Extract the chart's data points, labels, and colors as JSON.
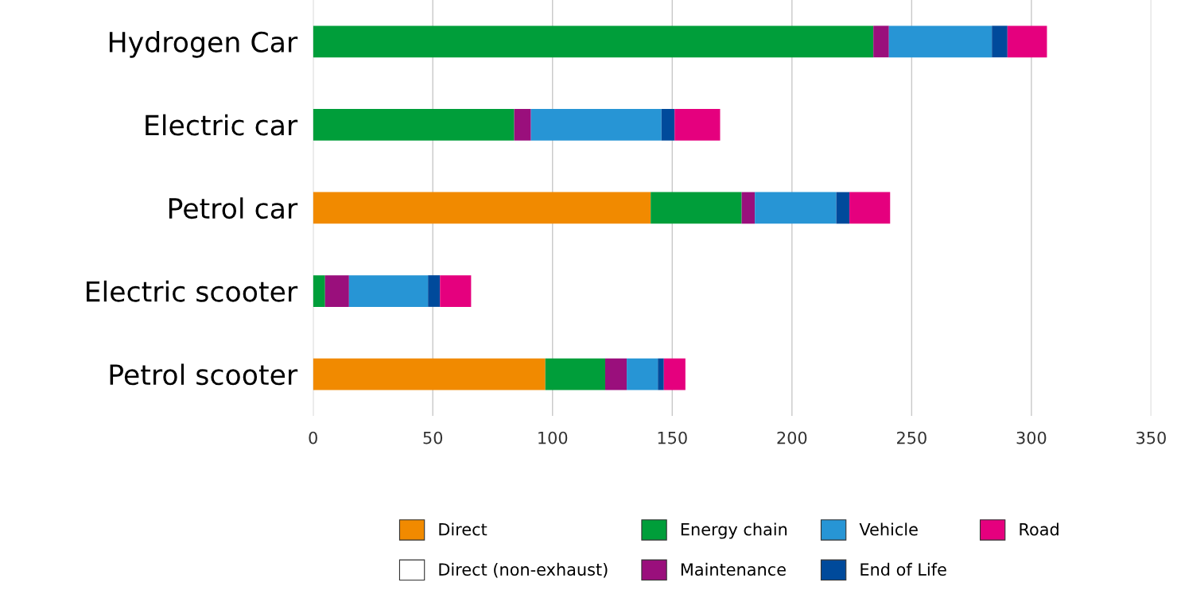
{
  "chart_data": {
    "type": "bar",
    "orientation": "horizontal",
    "stacked": true,
    "categories": [
      "Hydrogen Car",
      "Electric car",
      "Petrol car",
      "Electric scooter",
      "Petrol scooter"
    ],
    "series": [
      {
        "name": "Direct",
        "color": "#f18a00",
        "values": [
          null,
          null,
          141,
          null,
          97
        ]
      },
      {
        "name": "Direct (non-exhaust)",
        "color": "#ffffff",
        "values": [
          null,
          null,
          null,
          null,
          null
        ]
      },
      {
        "name": "Energy chain",
        "color": "#009e3a",
        "values": [
          234,
          84,
          38,
          5,
          25
        ]
      },
      {
        "name": "Maintenance",
        "color": "#9a0f7c",
        "values": [
          6.5,
          7,
          5.5,
          10,
          9
        ]
      },
      {
        "name": "Vehicle",
        "color": "#2795d5",
        "values": [
          43,
          54.5,
          34,
          33,
          13
        ]
      },
      {
        "name": "End of Life",
        "color": "#004a9b",
        "values": [
          6.5,
          5.5,
          5.5,
          5,
          2.5
        ]
      },
      {
        "name": "Road",
        "color": "#e5007e",
        "values": [
          16.5,
          19,
          17,
          13,
          9
        ]
      }
    ],
    "xlim": [
      0,
      350
    ],
    "xticks": [
      0,
      50,
      100,
      150,
      200,
      250,
      300,
      350
    ],
    "grid": "x",
    "legend": "bottom"
  }
}
